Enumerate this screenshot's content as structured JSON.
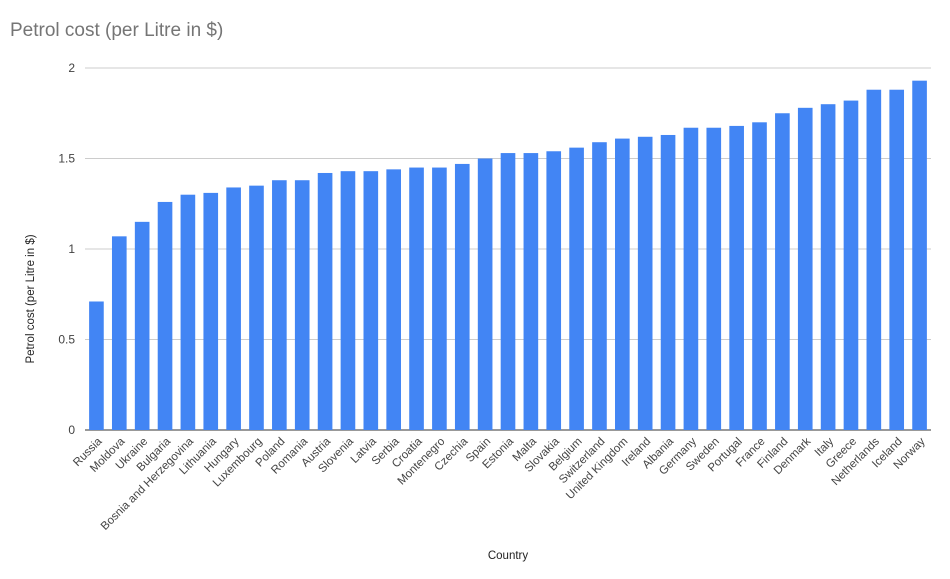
{
  "chart_data": {
    "type": "bar",
    "title": "Petrol cost (per Litre in $)",
    "xlabel": "Country",
    "ylabel": "Petrol cost (per Litre in $)",
    "ylim": [
      0,
      2
    ],
    "yticks": [
      "0",
      "0.5",
      "1",
      "1.5",
      "2"
    ],
    "grid": true,
    "bar_color": "#4285f4",
    "categories": [
      "Russia",
      "Moldova",
      "Ukraine",
      "Bulgaria",
      "Bosnia and Herzegovina",
      "Lithuania",
      "Hungary",
      "Luxembourg",
      "Poland",
      "Romania",
      "Austria",
      "Slovenia",
      "Latvia",
      "Serbia",
      "Croatia",
      "Montenegro",
      "Czechia",
      "Spain",
      "Estonia",
      "Malta",
      "Slovakia",
      "Belgium",
      "Switzerland",
      "United Kingdom",
      "Ireland",
      "Albania",
      "Germany",
      "Sweden",
      "Portugal",
      "France",
      "Finland",
      "Denmark",
      "Italy",
      "Greece",
      "Netherlands",
      "Iceland",
      "Norway"
    ],
    "values": [
      0.71,
      1.07,
      1.15,
      1.26,
      1.3,
      1.31,
      1.34,
      1.35,
      1.38,
      1.38,
      1.42,
      1.43,
      1.43,
      1.44,
      1.45,
      1.45,
      1.47,
      1.5,
      1.53,
      1.53,
      1.54,
      1.56,
      1.59,
      1.61,
      1.62,
      1.63,
      1.67,
      1.67,
      1.68,
      1.7,
      1.75,
      1.78,
      1.8,
      1.82,
      1.88,
      1.88,
      1.93
    ]
  }
}
